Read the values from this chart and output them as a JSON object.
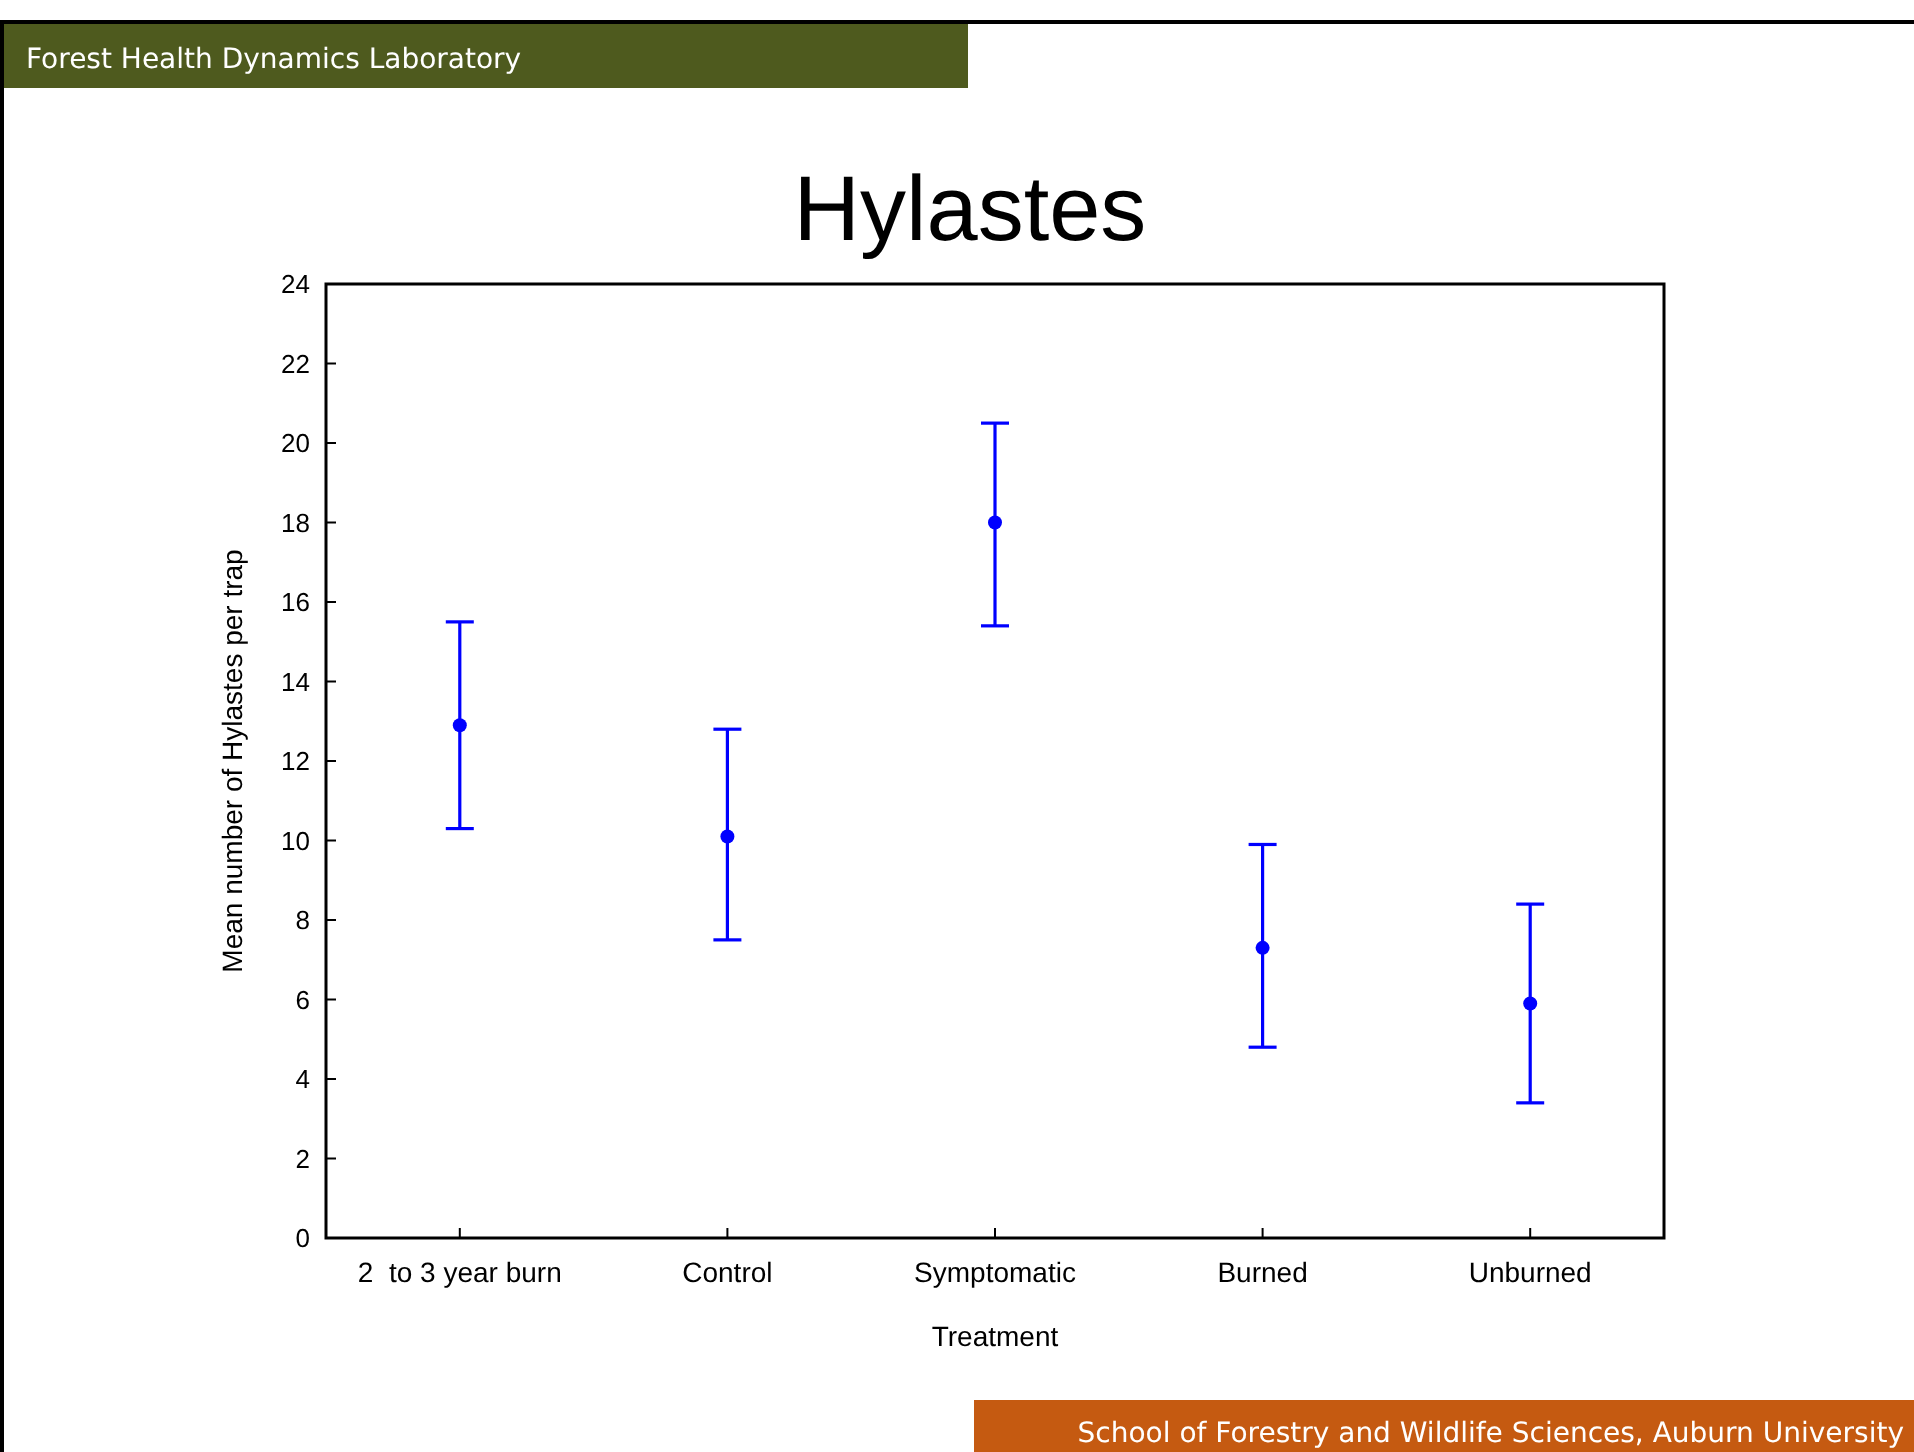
{
  "chart_data": {
    "type": "scatter",
    "title": "Hylastes",
    "xlabel": "Treatment",
    "ylabel": "Mean number of Hylastes per trap",
    "categories": [
      "2  to 3 year burn",
      "Control",
      "Symptomatic",
      "Burned",
      "Unburned"
    ],
    "values": [
      12.9,
      10.1,
      18.0,
      7.3,
      5.9
    ],
    "errors": [
      [
        10.3,
        15.5
      ],
      [
        7.5,
        12.8
      ],
      [
        15.4,
        20.5
      ],
      [
        4.8,
        9.9
      ],
      [
        3.4,
        8.4
      ]
    ],
    "color": "#0000ff",
    "marker": "circle",
    "grid": false,
    "ylim": [
      0,
      24
    ],
    "yticks": [
      0,
      2,
      4,
      6,
      8,
      10,
      12,
      14,
      16,
      18,
      20,
      22,
      24
    ],
    "annotations": [
      "Forest Health Dynamics Laboratory",
      "School of Forestry and Wildlife Sciences, Auburn University"
    ]
  }
}
